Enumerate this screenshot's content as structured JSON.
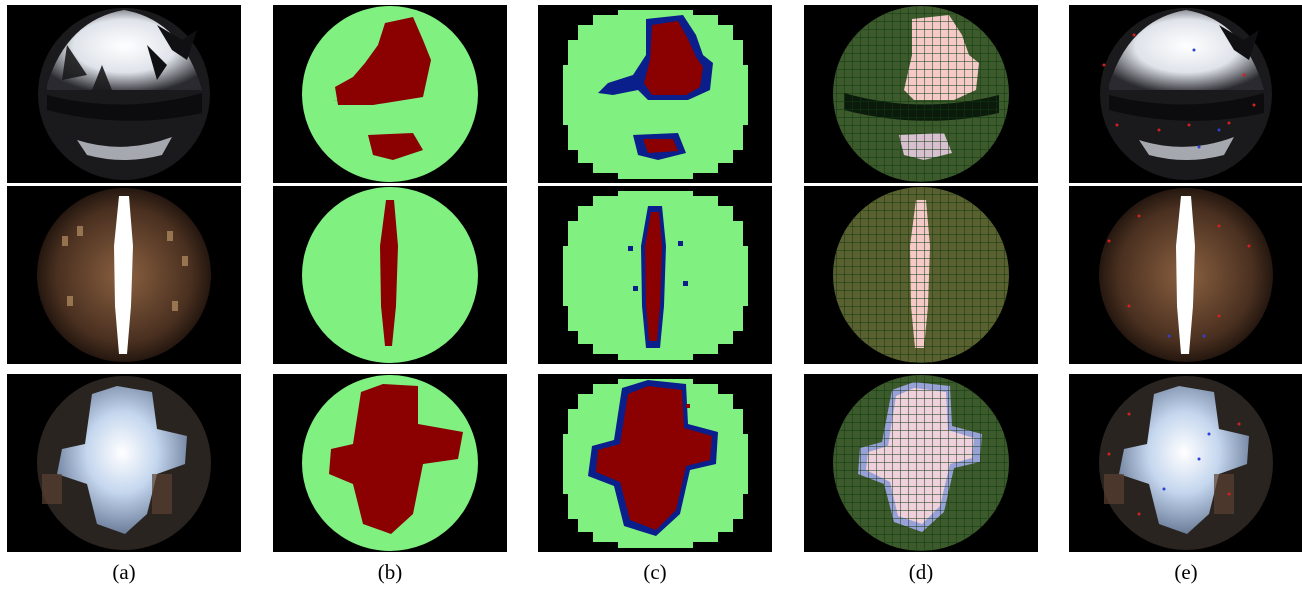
{
  "figure": {
    "captions": [
      "(a)",
      "(b)",
      "(c)",
      "(d)",
      "(e)"
    ],
    "rows": [
      {
        "scene": "tree-sky-upper-half"
      },
      {
        "scene": "narrow-vertical-sky-between-buildings"
      },
      {
        "scene": "cross-shaped-sky-between-buildings"
      }
    ]
  },
  "colors": {
    "background": "#000000",
    "non_sky": "#80f080",
    "sky": "#8b0000",
    "boundary": "#0a1e8c",
    "grid_line": "#0c3a10",
    "sky_overlay": "#f6c9c9"
  }
}
